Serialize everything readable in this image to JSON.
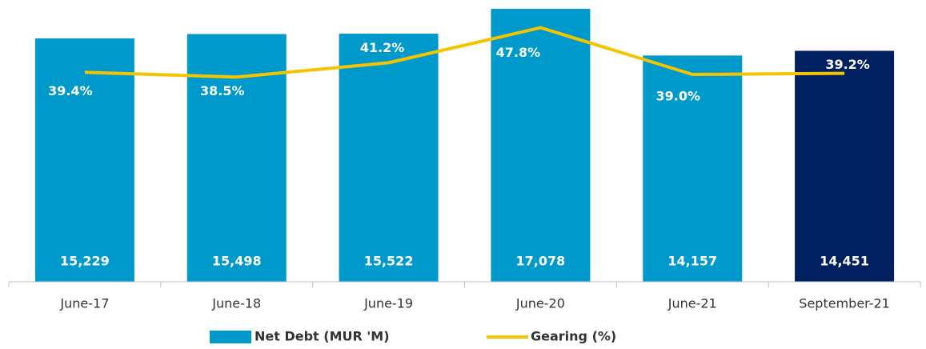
{
  "chart_data": {
    "type": "bar_line",
    "categories": [
      "June-17",
      "June-18",
      "June-19",
      "June-20",
      "June-21",
      "September-21"
    ],
    "series": [
      {
        "name": "Net Debt (MUR 'M)",
        "type": "bar",
        "color": "#0099cc",
        "colors": [
          "#0099cc",
          "#0099cc",
          "#0099cc",
          "#0099cc",
          "#0099cc",
          "#002060"
        ],
        "values": [
          15229,
          15498,
          15522,
          17078,
          14157,
          14451
        ],
        "value_labels": [
          "15,229",
          "15,498",
          "15,522",
          "17,078",
          "14,157",
          "14,451"
        ]
      },
      {
        "name": "Gearing (%)",
        "type": "line",
        "axis": "y2",
        "color": "#f5c400",
        "values": [
          39.4,
          38.5,
          41.2,
          47.8,
          39.0,
          39.2
        ],
        "value_labels": [
          "39.4%",
          "38.5%",
          "41.2%",
          "47.8%",
          "39.0%",
          "39.2%"
        ]
      }
    ],
    "ylim": [
      0,
      17630
    ],
    "y2lim": [
      0,
      53
    ]
  }
}
